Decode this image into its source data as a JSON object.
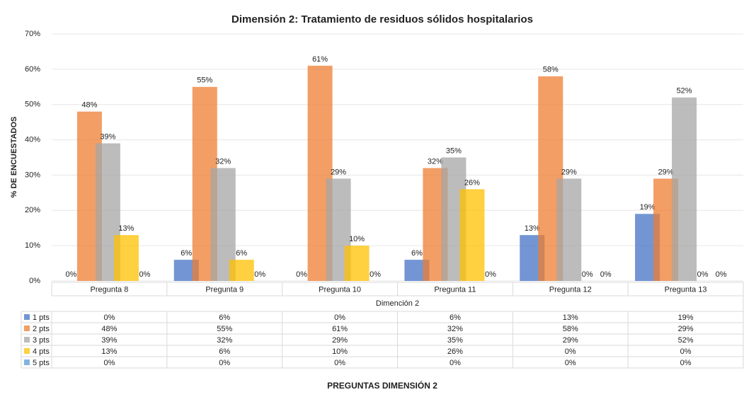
{
  "chart_data": {
    "type": "bar",
    "title": "Dimensión 2: Tratamiento de residuos sólidos hospitalarios",
    "subtitle": "Dimención 2",
    "x_label": "PREGUNTAS DIMENSIÓN 2",
    "y_label": "% DE ENCUESTADOS",
    "categories": [
      "Pregunta 8",
      "Pregunta 9",
      "Pregunta 10",
      "Pregunta 11",
      "Pregunta 12",
      "Pregunta 13"
    ],
    "series": [
      {
        "name": "1 pts",
        "color": "#4472c4",
        "values": [
          0,
          6,
          0,
          6,
          13,
          19
        ],
        "value_labels": [
          "0%",
          "6%",
          "0%",
          "6%",
          "13%",
          "19%"
        ]
      },
      {
        "name": "2 pts",
        "color": "#ed7d31",
        "values": [
          48,
          55,
          61,
          32,
          58,
          29
        ],
        "value_labels": [
          "48%",
          "55%",
          "61%",
          "32%",
          "58%",
          "29%"
        ]
      },
      {
        "name": "3 pts",
        "color": "#a5a5a5",
        "values": [
          39,
          32,
          29,
          35,
          29,
          52
        ],
        "value_labels": [
          "39%",
          "32%",
          "29%",
          "35%",
          "29%",
          "52%"
        ]
      },
      {
        "name": "4 pts",
        "color": "#ffc000",
        "values": [
          13,
          6,
          10,
          26,
          0,
          0
        ],
        "value_labels": [
          "13%",
          "6%",
          "10%",
          "26%",
          "0%",
          "0%"
        ]
      },
      {
        "name": "5 pts",
        "color": "#5b9bd5",
        "values": [
          0,
          0,
          0,
          0,
          0,
          0
        ],
        "value_labels": [
          "0%",
          "0%",
          "0%",
          "0%",
          "0%",
          "0%"
        ]
      }
    ],
    "ylim": [
      0,
      70
    ],
    "yticks": [
      {
        "value": 0,
        "label": "0%"
      },
      {
        "value": 10,
        "label": "10%"
      },
      {
        "value": 20,
        "label": "20%"
      },
      {
        "value": 30,
        "label": "30%"
      },
      {
        "value": 40,
        "label": "40%"
      },
      {
        "value": 50,
        "label": "50%"
      },
      {
        "value": 60,
        "label": "60%"
      },
      {
        "value": 70,
        "label": "70%"
      }
    ],
    "grid": true
  }
}
